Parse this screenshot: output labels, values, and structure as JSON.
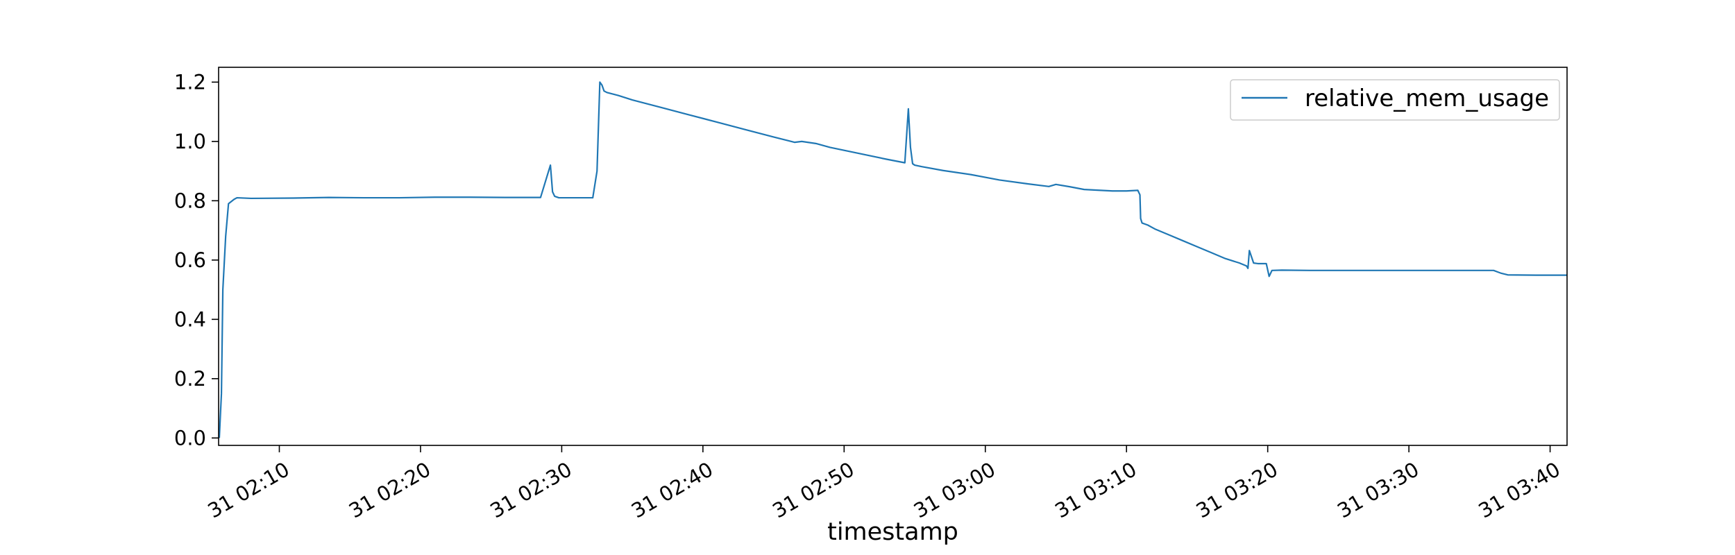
{
  "chart_data": {
    "type": "line",
    "title": "",
    "xlabel": "timestamp",
    "ylabel": "",
    "x_range_minutes": [
      4.7,
      100.2
    ],
    "ylim": [
      -0.025,
      1.25
    ],
    "x_ticks": [
      {
        "minute": 9,
        "label": "31 02:10"
      },
      {
        "minute": 19,
        "label": "31 02:20"
      },
      {
        "minute": 29,
        "label": "31 02:30"
      },
      {
        "minute": 39,
        "label": "31 02:40"
      },
      {
        "minute": 49,
        "label": "31 02:50"
      },
      {
        "minute": 59,
        "label": "31 03:00"
      },
      {
        "minute": 69,
        "label": "31 03:10"
      },
      {
        "minute": 79,
        "label": "31 03:20"
      },
      {
        "minute": 89,
        "label": "31 03:30"
      },
      {
        "minute": 99,
        "label": "31 03:40"
      }
    ],
    "y_ticks": [
      {
        "value": 0.0,
        "label": "0.0"
      },
      {
        "value": 0.2,
        "label": "0.2"
      },
      {
        "value": 0.4,
        "label": "0.4"
      },
      {
        "value": 0.6,
        "label": "0.6"
      },
      {
        "value": 0.8,
        "label": "0.8"
      },
      {
        "value": 1.0,
        "label": "1.0"
      },
      {
        "value": 1.2,
        "label": "1.2"
      }
    ],
    "legend_position": "upper-right",
    "grid": false,
    "series": [
      {
        "name": "relative_mem_usage",
        "color": "#1f77b4",
        "x": [
          4.75,
          4.9,
          5.0,
          5.2,
          5.4,
          5.8,
          6.0,
          7.0,
          10,
          12.5,
          15,
          17.5,
          20,
          22.5,
          25,
          27.5,
          28.2,
          28.35,
          28.5,
          28.8,
          29.5,
          31.2,
          31.5,
          31.7,
          31.85,
          32.0,
          32.2,
          33,
          34,
          36,
          38,
          40,
          42,
          44,
          45,
          45.5,
          46,
          47,
          48,
          50,
          52,
          53.3,
          53.55,
          53.7,
          53.85,
          54.0,
          54.5,
          56,
          58,
          60,
          62,
          63.5,
          64,
          65,
          66,
          68,
          69,
          69.8,
          69.95,
          70.0,
          70.1,
          70.5,
          71,
          72,
          73,
          74,
          75,
          76,
          77,
          77.5,
          77.6,
          77.7,
          78,
          78.3,
          78.9,
          79.1,
          79.3,
          80,
          82,
          85,
          90,
          95,
          95.5,
          96,
          98,
          100,
          100.2
        ],
        "y": [
          0.0,
          0.15,
          0.5,
          0.68,
          0.79,
          0.805,
          0.81,
          0.808,
          0.809,
          0.811,
          0.81,
          0.81,
          0.812,
          0.812,
          0.811,
          0.811,
          0.92,
          0.83,
          0.815,
          0.81,
          0.81,
          0.81,
          0.9,
          1.2,
          1.19,
          1.17,
          1.165,
          1.155,
          1.14,
          1.115,
          1.09,
          1.065,
          1.04,
          1.015,
          1.003,
          0.997,
          1.0,
          0.993,
          0.98,
          0.96,
          0.94,
          0.928,
          1.11,
          0.98,
          0.925,
          0.92,
          0.915,
          0.902,
          0.888,
          0.87,
          0.857,
          0.848,
          0.855,
          0.847,
          0.838,
          0.833,
          0.833,
          0.835,
          0.82,
          0.74,
          0.725,
          0.718,
          0.705,
          0.685,
          0.665,
          0.645,
          0.625,
          0.605,
          0.59,
          0.58,
          0.572,
          0.632,
          0.59,
          0.588,
          0.588,
          0.545,
          0.565,
          0.566,
          0.565,
          0.565,
          0.565,
          0.565,
          0.556,
          0.55,
          0.549,
          0.549,
          0.549
        ]
      }
    ]
  }
}
